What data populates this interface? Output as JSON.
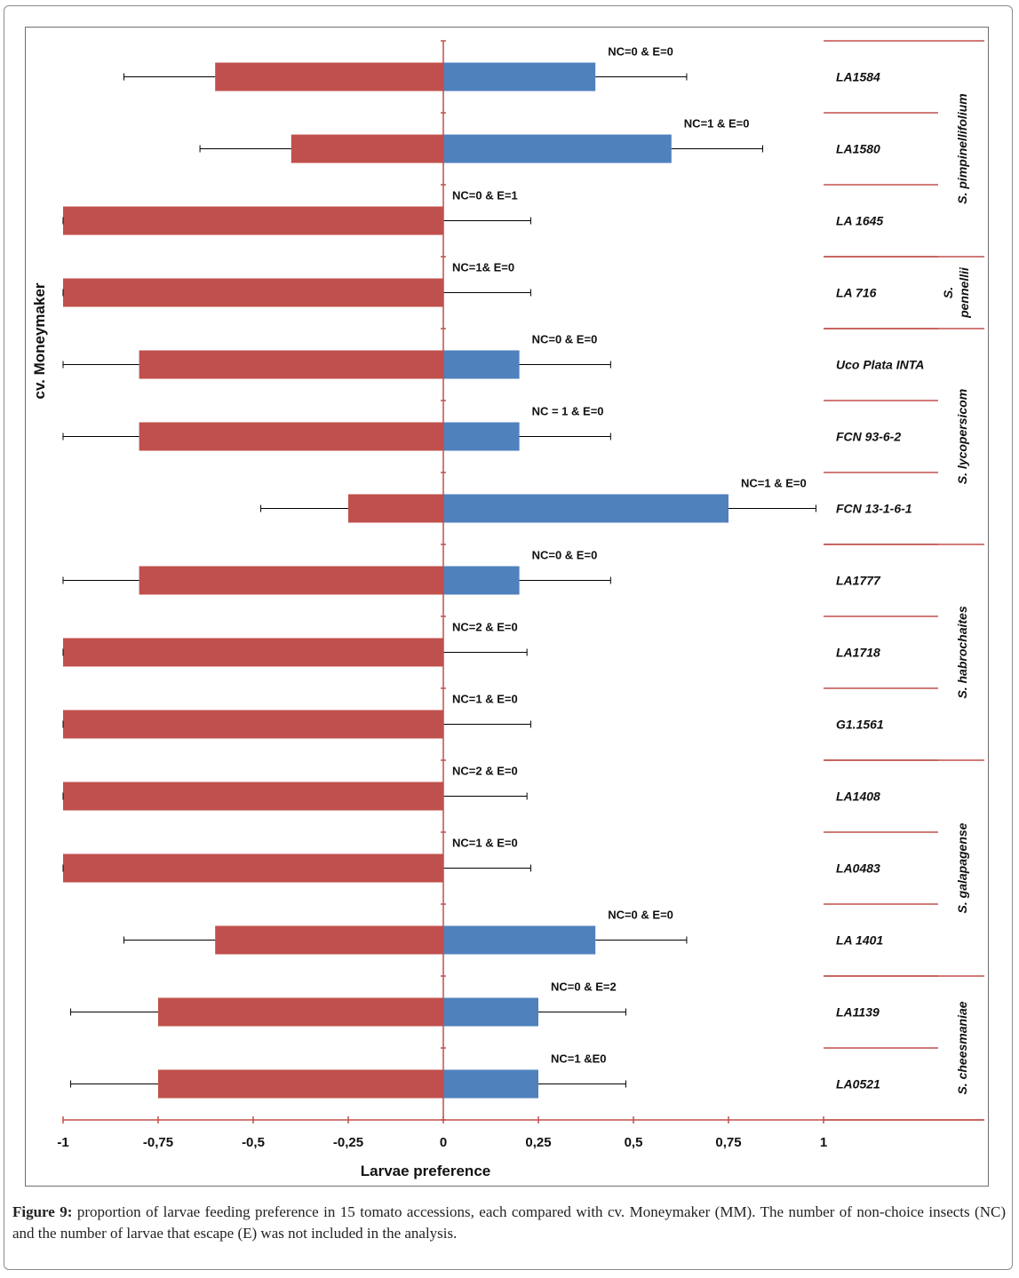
{
  "chart_data": {
    "type": "bar",
    "orientation": "horizontal",
    "xlabel": "Larvae preference",
    "ylabel": "cv. Moneymaker",
    "xlim": [
      -1,
      1
    ],
    "x_ticks": [
      "-1",
      "-0,75",
      "-0,5",
      "-0,25",
      "0",
      "0,25",
      "0,5",
      "0,75",
      "1"
    ],
    "grid": false,
    "colors": {
      "moneymaker": "#c0504d",
      "accession": "#4f81bd",
      "axis": "#c0504d"
    },
    "rows": [
      {
        "accession": "LA1584",
        "mm": -0.6,
        "mm_err": 0.24,
        "acc": 0.4,
        "acc_err": 0.24,
        "label": "NC=0 & E=0"
      },
      {
        "accession": "LA1580",
        "mm": -0.4,
        "mm_err": 0.24,
        "acc": 0.6,
        "acc_err": 0.24,
        "label": "NC=1 & E=0"
      },
      {
        "accession": "LA 1645",
        "mm": -1.0,
        "mm_err": 0.0,
        "acc": 0.0,
        "acc_err": 0.23,
        "label": "NC=0 & E=1"
      },
      {
        "accession": "LA 716",
        "mm": -1.0,
        "mm_err": 0.0,
        "acc": 0.0,
        "acc_err": 0.23,
        "label": "NC=1& E=0"
      },
      {
        "accession": "Uco Plata INTA",
        "mm": -0.8,
        "mm_err": 0.2,
        "acc": 0.2,
        "acc_err": 0.24,
        "label": "NC=0 & E=0"
      },
      {
        "accession": "FCN 93-6-2",
        "mm": -0.8,
        "mm_err": 0.2,
        "acc": 0.2,
        "acc_err": 0.24,
        "label": "NC = 1 & E=0"
      },
      {
        "accession": "FCN 13-1-6-1",
        "mm": -0.25,
        "mm_err": 0.23,
        "acc": 0.75,
        "acc_err": 0.23,
        "label": "NC=1 & E=0"
      },
      {
        "accession": "LA1777",
        "mm": -0.8,
        "mm_err": 0.2,
        "acc": 0.2,
        "acc_err": 0.24,
        "label": "NC=0 & E=0"
      },
      {
        "accession": "LA1718",
        "mm": -1.0,
        "mm_err": 0.0,
        "acc": 0.0,
        "acc_err": 0.22,
        "label": "NC=2 & E=0"
      },
      {
        "accession": "G1.1561",
        "mm": -1.0,
        "mm_err": 0.0,
        "acc": 0.0,
        "acc_err": 0.23,
        "label": "NC=1 & E=0"
      },
      {
        "accession": "LA1408",
        "mm": -1.0,
        "mm_err": 0.0,
        "acc": 0.0,
        "acc_err": 0.22,
        "label": "NC=2 & E=0"
      },
      {
        "accession": "LA0483",
        "mm": -1.0,
        "mm_err": 0.0,
        "acc": 0.0,
        "acc_err": 0.23,
        "label": "NC=1 & E=0"
      },
      {
        "accession": "LA 1401",
        "mm": -0.6,
        "mm_err": 0.24,
        "acc": 0.4,
        "acc_err": 0.24,
        "label": "NC=0 & E=0"
      },
      {
        "accession": "LA1139",
        "mm": -0.75,
        "mm_err": 0.23,
        "acc": 0.25,
        "acc_err": 0.23,
        "label": "NC=0 & E=2"
      },
      {
        "accession": "LA0521",
        "mm": -0.75,
        "mm_err": 0.23,
        "acc": 0.25,
        "acc_err": 0.23,
        "label": "NC=1 &E0"
      }
    ],
    "species_groups": [
      {
        "name": "S. pimpinellifolium",
        "first_row": 0,
        "last_row": 2
      },
      {
        "name": "S. pennellii",
        "first_row": 3,
        "last_row": 3
      },
      {
        "name": "S. lycopersicom",
        "first_row": 4,
        "last_row": 6
      },
      {
        "name": "S. habrochaites",
        "first_row": 7,
        "last_row": 9
      },
      {
        "name": "S. galapagense",
        "first_row": 10,
        "last_row": 12
      },
      {
        "name": "S. cheesmaniae",
        "first_row": 13,
        "last_row": 14
      }
    ]
  },
  "caption": {
    "label": "Figure 9:",
    "text": " proportion of larvae feeding preference in 15 tomato accessions, each compared with cv. Moneymaker (MM). The number of non-choice insects (NC) and the number of larvae that escape (E) was not included in the analysis."
  }
}
